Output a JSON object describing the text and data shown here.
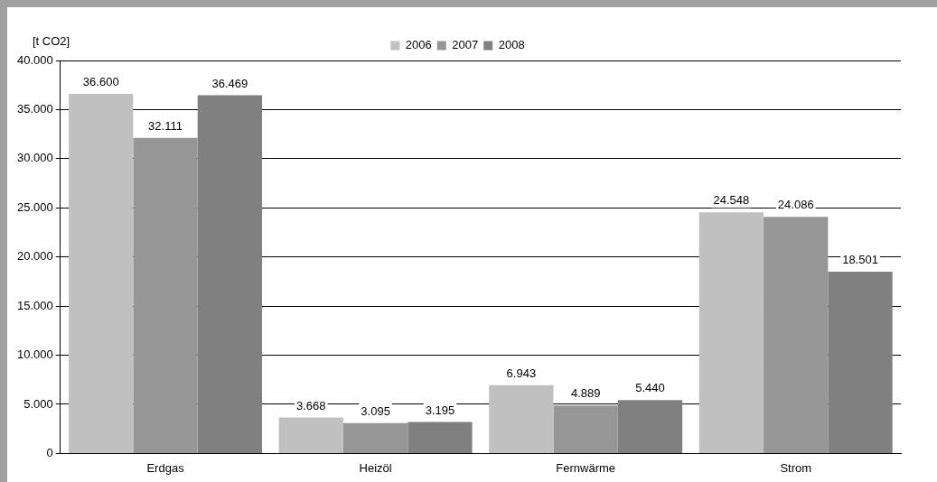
{
  "chart_data": {
    "type": "bar",
    "ylabel": "[t CO2]",
    "categories": [
      "Erdgas",
      "Heizöl",
      "Fernwärme",
      "Strom"
    ],
    "series": [
      {
        "name": "2006",
        "color": "#c0c0c0",
        "values": [
          36600,
          3668,
          6943,
          24548
        ],
        "value_labels": [
          "36.600",
          "3.668",
          "6.943",
          "24.548"
        ]
      },
      {
        "name": "2007",
        "color": "#969696",
        "values": [
          32111,
          3095,
          4889,
          24086
        ],
        "value_labels": [
          "32.111",
          "3.095",
          "4.889",
          "24.086"
        ]
      },
      {
        "name": "2008",
        "color": "#808080",
        "values": [
          36469,
          3195,
          5440,
          18501
        ],
        "value_labels": [
          "36.469",
          "3.195",
          "5.440",
          "18.501"
        ]
      }
    ],
    "ylim": [
      0,
      40000
    ],
    "yticks": [
      {
        "value": 0,
        "label": "0"
      },
      {
        "value": 5000,
        "label": "5.000"
      },
      {
        "value": 10000,
        "label": "10.000"
      },
      {
        "value": 15000,
        "label": "15.000"
      },
      {
        "value": 20000,
        "label": "20.000"
      },
      {
        "value": 25000,
        "label": "25.000"
      },
      {
        "value": 30000,
        "label": "30.000"
      },
      {
        "value": 35000,
        "label": "35.000"
      },
      {
        "value": 40000,
        "label": "40.000"
      }
    ],
    "grid": "y",
    "legend": "top"
  }
}
